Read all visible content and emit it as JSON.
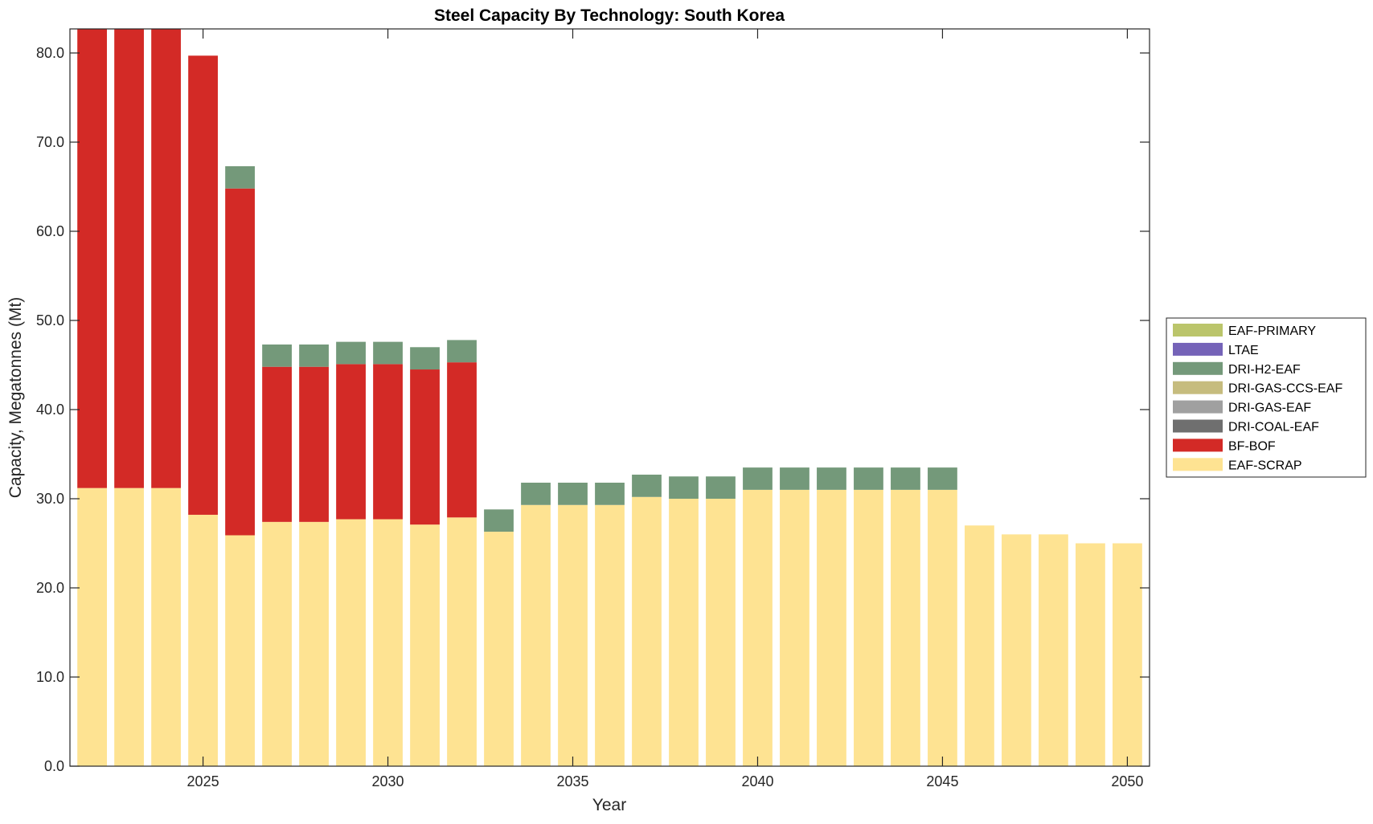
{
  "chart_data": {
    "type": "bar",
    "stacked": true,
    "title": "Steel Capacity By Technology: South Korea",
    "xlabel": "Year",
    "ylabel": "Capacity, Megatonnes (Mt)",
    "ylim": [
      0,
      82.7
    ],
    "xlim": [
      2021.4,
      2050.6
    ],
    "yticks": [
      0,
      10,
      20,
      30,
      40,
      50,
      60,
      70,
      80
    ],
    "ytick_labels": [
      "0.0",
      "10.0",
      "20.0",
      "30.0",
      "40.0",
      "50.0",
      "60.0",
      "70.0",
      "80.0"
    ],
    "xticks": [
      2025,
      2030,
      2035,
      2040,
      2045,
      2050
    ],
    "xtick_labels": [
      "2025",
      "2030",
      "2035",
      "2040",
      "2045",
      "2050"
    ],
    "grid": false,
    "legend_position": "right",
    "categories": [
      2022,
      2023,
      2024,
      2025,
      2026,
      2027,
      2028,
      2029,
      2030,
      2031,
      2032,
      2033,
      2034,
      2035,
      2036,
      2037,
      2038,
      2039,
      2040,
      2041,
      2042,
      2043,
      2044,
      2045,
      2046,
      2047,
      2048,
      2049,
      2050
    ],
    "legend": [
      "EAF-PRIMARY",
      "LTAE",
      "DRI-H2-EAF",
      "DRI-GAS-CCS-EAF",
      "DRI-GAS-EAF",
      "DRI-COAL-EAF",
      "BF-BOF",
      "EAF-SCRAP"
    ],
    "series": [
      {
        "name": "EAF-SCRAP",
        "color": "#FEE392",
        "values": [
          31.2,
          31.2,
          31.2,
          28.2,
          25.9,
          27.4,
          27.4,
          27.7,
          27.7,
          27.1,
          27.9,
          26.3,
          29.3,
          29.3,
          29.3,
          30.2,
          30.0,
          30.0,
          31.0,
          31.0,
          31.0,
          31.0,
          31.0,
          31.0,
          27.0,
          26.0,
          26.0,
          25.0,
          25.0
        ]
      },
      {
        "name": "BF-BOF",
        "color": "#D32A26",
        "values": [
          56.0,
          56.0,
          56.0,
          51.5,
          38.9,
          17.4,
          17.4,
          17.4,
          17.4,
          17.4,
          17.4,
          0,
          0,
          0,
          0,
          0,
          0,
          0,
          0,
          0,
          0,
          0,
          0,
          0,
          0,
          0,
          0,
          0,
          0
        ]
      },
      {
        "name": "DRI-COAL-EAF",
        "color": "#6F6F6F",
        "values": [
          0,
          0,
          0,
          0,
          0,
          0,
          0,
          0,
          0,
          0,
          0,
          0,
          0,
          0,
          0,
          0,
          0,
          0,
          0,
          0,
          0,
          0,
          0,
          0,
          0,
          0,
          0,
          0,
          0
        ]
      },
      {
        "name": "DRI-GAS-EAF",
        "color": "#A0A0A0",
        "values": [
          0,
          0,
          0,
          0,
          0,
          0,
          0,
          0,
          0,
          0,
          0,
          0,
          0,
          0,
          0,
          0,
          0,
          0,
          0,
          0,
          0,
          0,
          0,
          0,
          0,
          0,
          0,
          0,
          0
        ]
      },
      {
        "name": "DRI-GAS-CCS-EAF",
        "color": "#C6BC7E",
        "values": [
          0,
          0,
          0,
          0,
          0,
          0,
          0,
          0,
          0,
          0,
          0,
          0,
          0,
          0,
          0,
          0,
          0,
          0,
          0,
          0,
          0,
          0,
          0,
          0,
          0,
          0,
          0,
          0,
          0
        ]
      },
      {
        "name": "DRI-H2-EAF",
        "color": "#74997A",
        "values": [
          0,
          0,
          0,
          0,
          2.5,
          2.5,
          2.5,
          2.5,
          2.5,
          2.5,
          2.5,
          2.5,
          2.5,
          2.5,
          2.5,
          2.5,
          2.5,
          2.5,
          2.5,
          2.5,
          2.5,
          2.5,
          2.5,
          2.5,
          0,
          0,
          0,
          0,
          0
        ]
      },
      {
        "name": "LTAE",
        "color": "#7563B8",
        "values": [
          0,
          0,
          0,
          0,
          0,
          0,
          0,
          0,
          0,
          0,
          0,
          0,
          0,
          0,
          0,
          0,
          0,
          0,
          0,
          0,
          0,
          0,
          0,
          0,
          0,
          0,
          0,
          0,
          0
        ]
      },
      {
        "name": "EAF-PRIMARY",
        "color": "#BBC56B",
        "values": [
          0,
          0,
          0,
          0,
          0,
          0,
          0,
          0,
          0,
          0,
          0,
          0,
          0,
          0,
          0,
          0,
          0,
          0,
          0,
          0,
          0,
          0,
          0,
          0,
          0,
          0,
          0,
          0,
          0
        ]
      }
    ]
  }
}
